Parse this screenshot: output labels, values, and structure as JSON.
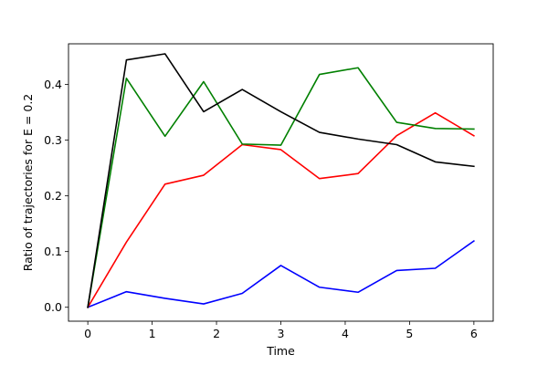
{
  "chart_data": {
    "type": "line",
    "title": "",
    "xlabel": "Time",
    "ylabel": "Ratio of trajectories for E = 0.2",
    "xlim": [
      -0.3,
      6.3
    ],
    "ylim": [
      -0.025,
      0.473
    ],
    "xticks": [
      0,
      1,
      2,
      3,
      4,
      5,
      6
    ],
    "xtick_labels": [
      "0",
      "1",
      "2",
      "3",
      "4",
      "5",
      "6"
    ],
    "yticks": [
      0.0,
      0.1,
      0.2,
      0.3,
      0.4
    ],
    "ytick_labels": [
      "0.0",
      "0.1",
      "0.2",
      "0.3",
      "0.4"
    ],
    "grid": false,
    "legend": "none",
    "x": [
      0,
      0.6,
      1.2,
      1.8,
      2.4,
      3.0,
      3.6,
      4.2,
      4.8,
      5.4,
      6.0
    ],
    "series": [
      {
        "color": "#0000ff",
        "values": [
          0.0,
          0.028,
          0.016,
          0.006,
          0.025,
          0.075,
          0.036,
          0.027,
          0.066,
          0.07,
          0.119
        ]
      },
      {
        "color": "#ff0000",
        "values": [
          0.0,
          0.117,
          0.221,
          0.237,
          0.292,
          0.283,
          0.231,
          0.24,
          0.308,
          0.349,
          0.308
        ]
      },
      {
        "color": "#008000",
        "values": [
          0.0,
          0.411,
          0.307,
          0.405,
          0.293,
          0.291,
          0.418,
          0.43,
          0.332,
          0.321,
          0.32
        ]
      },
      {
        "color": "#000000",
        "values": [
          0.0,
          0.444,
          0.455,
          0.351,
          0.391,
          0.351,
          0.314,
          0.302,
          0.292,
          0.261,
          0.253
        ]
      }
    ]
  }
}
